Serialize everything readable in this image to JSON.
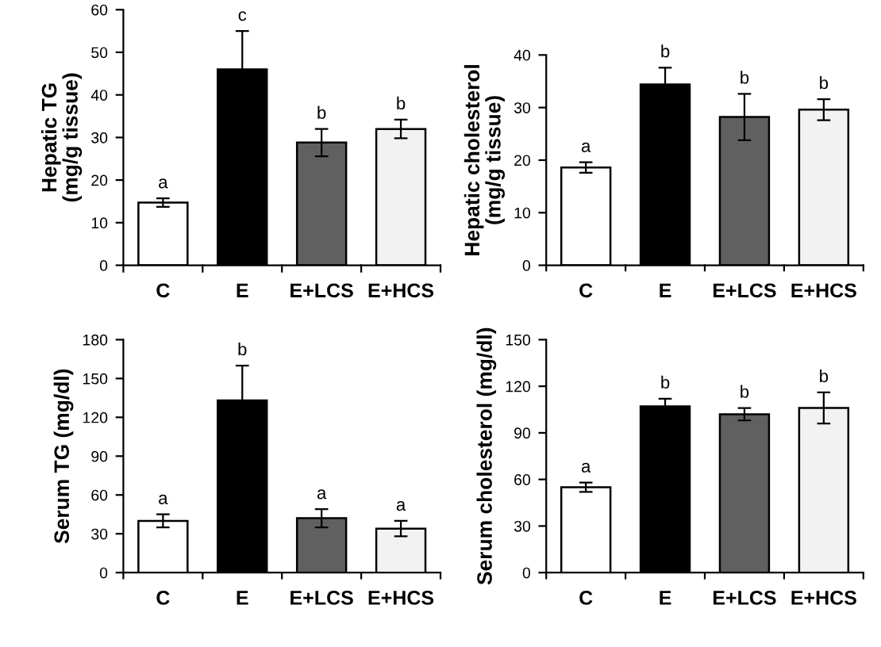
{
  "chart_data": [
    {
      "type": "bar",
      "ylabel": "Hepatic TG\n(mg/g tissue)",
      "categories": [
        "C",
        "E",
        "E+LCS",
        "E+HCS"
      ],
      "values": [
        14.7,
        46,
        28.8,
        32
      ],
      "errors": [
        1,
        9,
        3.2,
        2.2
      ],
      "colors": [
        "#ffffff",
        "#000000",
        "#606060",
        "#f2f2f2"
      ],
      "ylim": [
        0,
        60
      ],
      "yticks": [
        0,
        10,
        20,
        30,
        40,
        50,
        60
      ],
      "grid": false,
      "legend": false,
      "annotations": [
        "a",
        "c",
        "b",
        "b"
      ]
    },
    {
      "type": "bar",
      "ylabel": "Hepatic cholesterol\n(mg/g tissue)",
      "categories": [
        "C",
        "E",
        "E+LCS",
        "E+HCS"
      ],
      "values": [
        18.6,
        34.4,
        28.2,
        29.6
      ],
      "errors": [
        1,
        3.2,
        4.4,
        2
      ],
      "colors": [
        "#ffffff",
        "#000000",
        "#606060",
        "#f2f2f2"
      ],
      "ylim": [
        0,
        40
      ],
      "yticks": [
        0,
        10,
        20,
        30,
        40
      ],
      "grid": false,
      "legend": false,
      "annotations": [
        "a",
        "b",
        "b",
        "b"
      ]
    },
    {
      "type": "bar",
      "ylabel": "Serum TG (mg/dl)",
      "categories": [
        "C",
        "E",
        "E+LCS",
        "E+HCS"
      ],
      "values": [
        40,
        133,
        42,
        34
      ],
      "errors": [
        5,
        27,
        7,
        6
      ],
      "colors": [
        "#ffffff",
        "#000000",
        "#606060",
        "#f2f2f2"
      ],
      "ylim": [
        0,
        180
      ],
      "yticks": [
        0,
        30,
        60,
        90,
        120,
        150,
        180
      ],
      "grid": false,
      "legend": false,
      "annotations": [
        "a",
        "b",
        "a",
        "a"
      ]
    },
    {
      "type": "bar",
      "ylabel": "Serum cholesterol (mg/dl)",
      "categories": [
        "C",
        "E",
        "E+LCS",
        "E+HCS"
      ],
      "values": [
        55,
        107,
        102,
        106
      ],
      "errors": [
        3,
        5,
        4,
        10
      ],
      "colors": [
        "#ffffff",
        "#000000",
        "#606060",
        "#f2f2f2"
      ],
      "ylim": [
        0,
        150
      ],
      "yticks": [
        0,
        30,
        60,
        90,
        120,
        150
      ],
      "grid": false,
      "legend": false,
      "annotations": [
        "a",
        "b",
        "b",
        "b"
      ]
    }
  ]
}
